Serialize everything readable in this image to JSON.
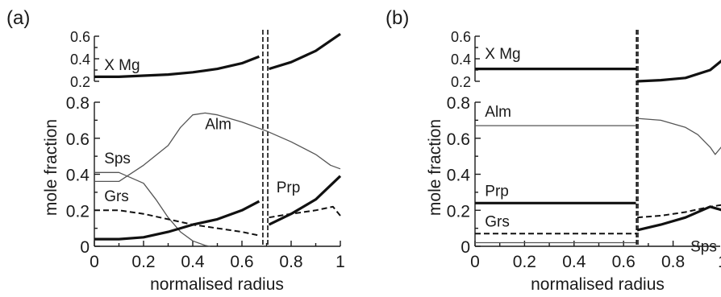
{
  "chart_data": [
    {
      "type": "line",
      "panel_label": "(a)",
      "xlabel": "normalised radius",
      "ylabel": "mole fraction",
      "xlim": [
        0,
        1
      ],
      "x_ticks": [
        "0",
        "0.2",
        "0.4",
        "0.6",
        "0.8",
        "1"
      ],
      "top_axis": {
        "ylim": [
          0.2,
          0.6
        ],
        "y_ticks": [
          "0.2",
          "0.4",
          "0.6"
        ],
        "series": [
          {
            "name": "X Mg",
            "style": "thick",
            "segments": [
              {
                "x": [
                  0,
                  0.1,
                  0.2,
                  0.3,
                  0.4,
                  0.5,
                  0.6,
                  0.67
                ],
                "y": [
                  0.24,
                  0.24,
                  0.25,
                  0.26,
                  0.28,
                  0.31,
                  0.36,
                  0.42
                ]
              },
              {
                "x": [
                  0.71,
                  0.8,
                  0.9,
                  1.0
                ],
                "y": [
                  0.31,
                  0.37,
                  0.47,
                  0.62
                ]
              }
            ]
          }
        ]
      },
      "main_axis": {
        "ylim": [
          0,
          0.8
        ],
        "y_ticks": [
          "0",
          "0.2",
          "0.4",
          "0.6",
          "0.8"
        ],
        "series": [
          {
            "name": "Alm",
            "style": "thin",
            "segments": [
              {
                "x": [
                  0,
                  0.1,
                  0.2,
                  0.3,
                  0.35,
                  0.4,
                  0.45,
                  0.5,
                  0.6,
                  0.7,
                  0.8,
                  0.9,
                  0.96,
                  1.0
                ],
                "y": [
                  0.36,
                  0.36,
                  0.45,
                  0.56,
                  0.66,
                  0.73,
                  0.74,
                  0.73,
                  0.69,
                  0.64,
                  0.58,
                  0.51,
                  0.45,
                  0.43
                ]
              }
            ]
          },
          {
            "name": "Sps",
            "style": "thin",
            "segments": [
              {
                "x": [
                  0,
                  0.1,
                  0.2,
                  0.25,
                  0.3,
                  0.35,
                  0.4,
                  0.45,
                  0.47
                ],
                "y": [
                  0.41,
                  0.41,
                  0.35,
                  0.26,
                  0.16,
                  0.08,
                  0.03,
                  0.005,
                  0.0
                ]
              }
            ]
          },
          {
            "name": "Grs",
            "style": "dashed",
            "segments": [
              {
                "x": [
                  0,
                  0.1,
                  0.2,
                  0.3,
                  0.4,
                  0.5,
                  0.6,
                  0.67
                ],
                "y": [
                  0.2,
                  0.2,
                  0.18,
                  0.15,
                  0.12,
                  0.1,
                  0.08,
                  0.06
                ]
              },
              {
                "x": [
                  0.71,
                  0.8,
                  0.9,
                  0.97,
                  1.0
                ],
                "y": [
                  0.16,
                  0.18,
                  0.2,
                  0.22,
                  0.17
                ]
              }
            ]
          },
          {
            "name": "Prp",
            "style": "thick",
            "segments": [
              {
                "x": [
                  0,
                  0.1,
                  0.2,
                  0.3,
                  0.4,
                  0.5,
                  0.6,
                  0.67
                ],
                "y": [
                  0.04,
                  0.04,
                  0.05,
                  0.08,
                  0.12,
                  0.15,
                  0.2,
                  0.25
                ]
              },
              {
                "x": [
                  0.71,
                  0.8,
                  0.9,
                  1.0
                ],
                "y": [
                  0.12,
                  0.18,
                  0.26,
                  0.39
                ]
              }
            ]
          }
        ]
      },
      "divider_lines_x": [
        0.685,
        0.705
      ],
      "curve_labels": [
        {
          "text": "X Mg",
          "axis": "top",
          "x": 0.04,
          "y": 0.3
        },
        {
          "text": "Alm",
          "axis": "main",
          "x": 0.45,
          "y": 0.65
        },
        {
          "text": "Sps",
          "axis": "main",
          "x": 0.04,
          "y": 0.46
        },
        {
          "text": "Grs",
          "axis": "main",
          "x": 0.04,
          "y": 0.25
        },
        {
          "text": "Prp",
          "axis": "main",
          "x": 0.74,
          "y": 0.3
        }
      ]
    },
    {
      "type": "line",
      "panel_label": "(b)",
      "xlabel": "normalised radius",
      "ylabel": "mole fraction",
      "xlim": [
        0,
        1
      ],
      "x_ticks": [
        "0",
        "0.2",
        "0.4",
        "0.6",
        "0.8",
        "1"
      ],
      "top_axis": {
        "ylim": [
          0.2,
          0.6
        ],
        "y_ticks": [
          "0.2",
          "0.4",
          "0.6"
        ],
        "series": [
          {
            "name": "X Mg",
            "style": "thick",
            "segments": [
              {
                "x": [
                  0,
                  0.65
                ],
                "y": [
                  0.31,
                  0.31
                ]
              },
              {
                "x": [
                  0.655,
                  0.75,
                  0.85,
                  0.95,
                  1.0
                ],
                "y": [
                  0.2,
                  0.21,
                  0.23,
                  0.3,
                  0.39
                ]
              }
            ]
          }
        ]
      },
      "main_axis": {
        "ylim": [
          0,
          0.8
        ],
        "y_ticks": [
          "0",
          "0.2",
          "0.4",
          "0.6",
          "0.8"
        ],
        "series": [
          {
            "name": "Alm",
            "style": "thin",
            "segments": [
              {
                "x": [
                  0,
                  0.65
                ],
                "y": [
                  0.67,
                  0.67
                ]
              },
              {
                "x": [
                  0.655,
                  0.75,
                  0.85,
                  0.9,
                  0.95,
                  0.97,
                  1.0
                ],
                "y": [
                  0.71,
                  0.7,
                  0.66,
                  0.62,
                  0.55,
                  0.51,
                  0.56
                ]
              }
            ]
          },
          {
            "name": "Prp",
            "style": "thick",
            "segments": [
              {
                "x": [
                  0,
                  0.65
                ],
                "y": [
                  0.24,
                  0.24
                ]
              },
              {
                "x": [
                  0.655,
                  0.75,
                  0.85,
                  0.95,
                  1.0
                ],
                "y": [
                  0.09,
                  0.12,
                  0.16,
                  0.22,
                  0.2
                ]
              }
            ]
          },
          {
            "name": "Grs",
            "style": "dashed",
            "segments": [
              {
                "x": [
                  0,
                  0.65
                ],
                "y": [
                  0.07,
                  0.07
                ]
              },
              {
                "x": [
                  0.655,
                  0.75,
                  0.85,
                  0.95,
                  1.0
                ],
                "y": [
                  0.16,
                  0.17,
                  0.19,
                  0.22,
                  0.23
                ]
              }
            ]
          },
          {
            "name": "Sps",
            "style": "thin",
            "segments": [
              {
                "x": [
                  0,
                  0.65
                ],
                "y": [
                  0.02,
                  0.02
                ]
              }
            ]
          }
        ]
      },
      "divider_lines_x": [
        0.652,
        0.658
      ],
      "curve_labels": [
        {
          "text": "X Mg",
          "axis": "top",
          "x": 0.04,
          "y": 0.4
        },
        {
          "text": "Alm",
          "axis": "main",
          "x": 0.04,
          "y": 0.72
        },
        {
          "text": "Prp",
          "axis": "main",
          "x": 0.04,
          "y": 0.28
        },
        {
          "text": "Grs",
          "axis": "main",
          "x": 0.04,
          "y": 0.11
        },
        {
          "text": "Sps",
          "axis": "main",
          "x": 0.87,
          "y": -0.03
        }
      ]
    }
  ]
}
